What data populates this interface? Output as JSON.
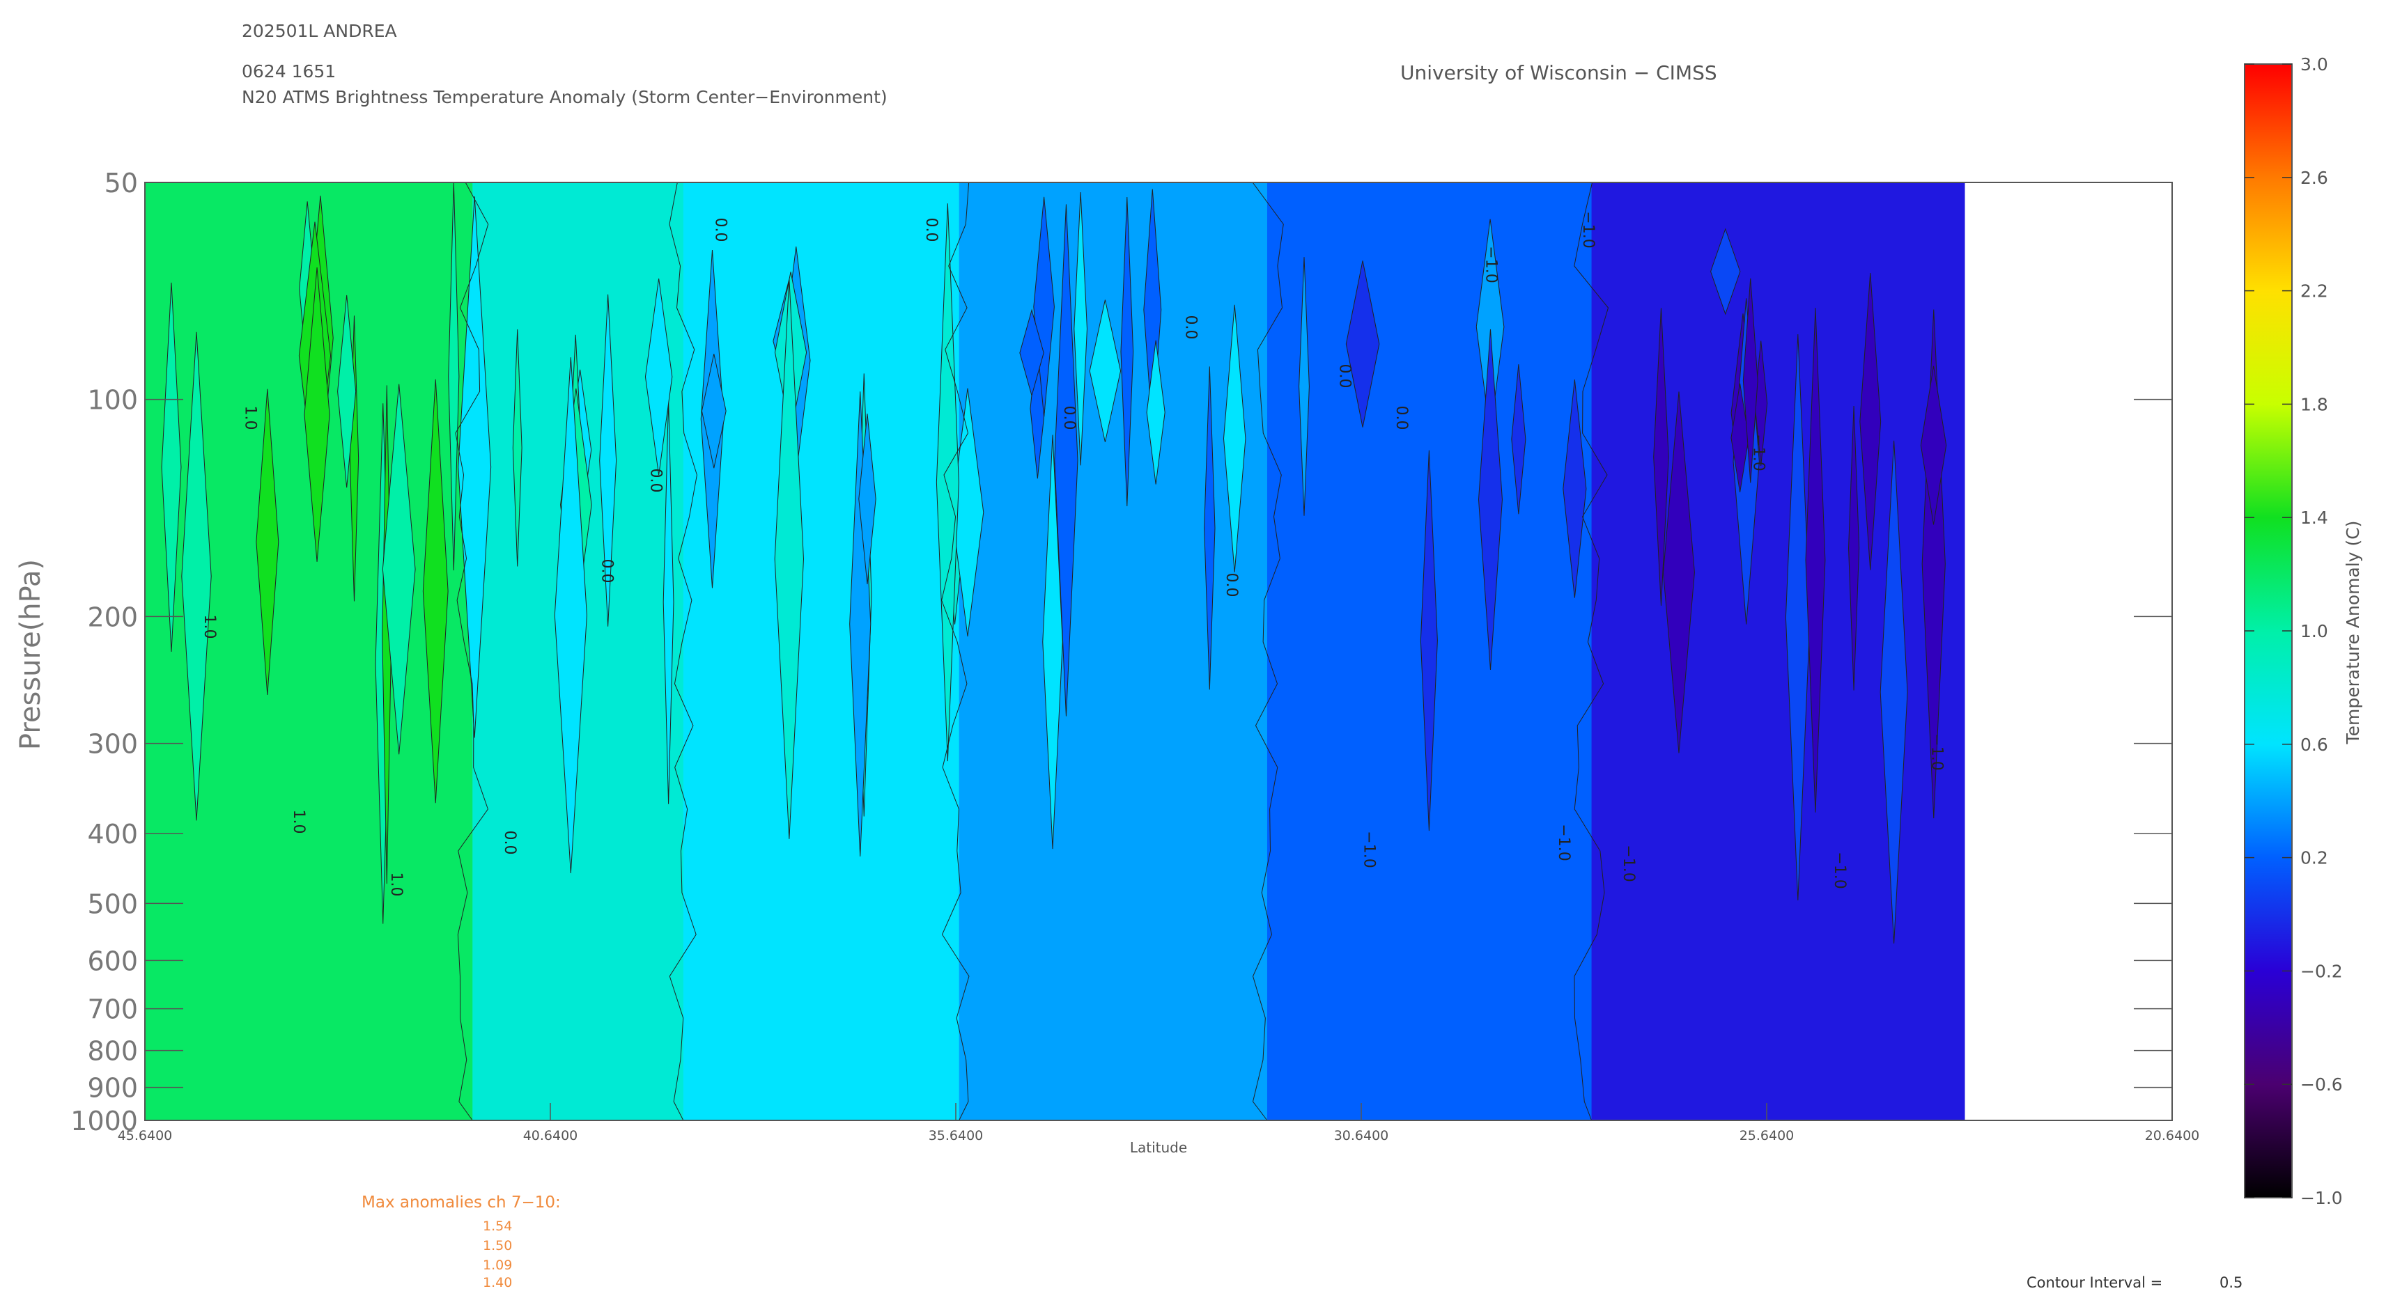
{
  "header": {
    "storm_id": "202501L ANDREA",
    "datetime": "0624 1651",
    "product": "N20 ATMS Brightness Temperature Anomaly (Storm Center−Environment)",
    "institution": "University of Wisconsin − CIMSS"
  },
  "chart_data": {
    "type": "heatmap",
    "title": "N20 ATMS Brightness Temperature Anomaly (Storm Center−Environment)",
    "xlabel": "Latitude",
    "ylabel": "Pressure(hPa)",
    "x_ticks": [
      "45.6400",
      "40.6400",
      "35.6400",
      "30.6400",
      "25.6400",
      "20.6400"
    ],
    "xlim": [
      45.64,
      20.64
    ],
    "y_ticks": [
      "50",
      "100",
      "200",
      "300",
      "400",
      "500",
      "600",
      "700",
      "800",
      "900",
      "1000"
    ],
    "ylim": [
      1000,
      50
    ],
    "y_scale": "log",
    "colorbar": {
      "label": "Temperature Anomaly (C)",
      "ticks": [
        "3.0",
        "2.6",
        "2.2",
        "1.8",
        "1.4",
        "1.0",
        "0.6",
        "0.2",
        "−0.2",
        "−0.6",
        "−1.0"
      ],
      "range": [
        -1.0,
        3.0
      ]
    },
    "contour_labels": [
      "0.0",
      "−1.0",
      "1.0"
    ],
    "data_extent_lat": [
      45.64,
      23.2
    ],
    "bands": [
      {
        "lat_from": 45.64,
        "lat_to": 41.6,
        "value": 1.2
      },
      {
        "lat_from": 41.6,
        "lat_to": 39.0,
        "value": 0.8
      },
      {
        "lat_from": 39.0,
        "lat_to": 35.6,
        "value": 0.6
      },
      {
        "lat_from": 35.6,
        "lat_to": 31.8,
        "value": 0.4
      },
      {
        "lat_from": 31.8,
        "lat_to": 27.8,
        "value": 0.2
      },
      {
        "lat_from": 27.8,
        "lat_to": 23.2,
        "value": -0.1
      }
    ],
    "annotations": {
      "max_anomalies_title": "Max anomalies ch 7−10:",
      "max_anomalies": [
        "1.54",
        "1.50",
        "1.09",
        "1.40"
      ],
      "contour_interval_label": "Contour Interval =",
      "contour_interval_value": "0.5"
    }
  }
}
